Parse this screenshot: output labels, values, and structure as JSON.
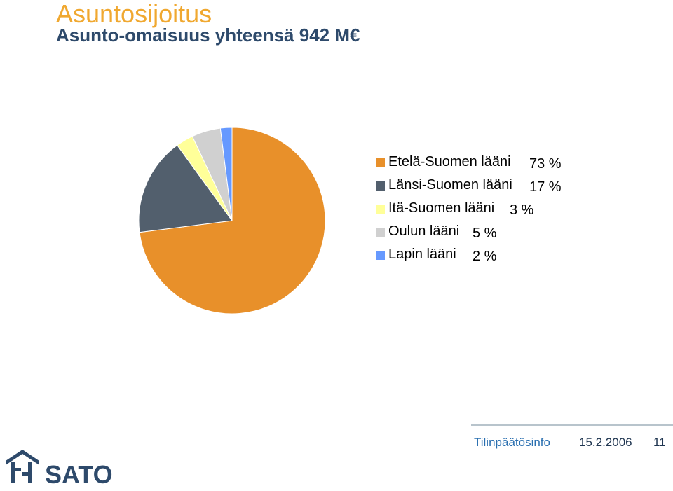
{
  "slide": {
    "title": "Asuntosijoitus",
    "subtitle": "Asunto-omaisuus yhteensä 942 M€"
  },
  "chart_data": {
    "type": "pie",
    "title": "",
    "slices": [
      {
        "label": "Etelä-Suomen lääni",
        "value": 73,
        "pct_label": "73 %",
        "color": "#e8902a"
      },
      {
        "label": "Länsi-Suomen lääni",
        "value": 17,
        "pct_label": "17 %",
        "color": "#525f6d"
      },
      {
        "label": "Itä-Suomen lääni",
        "value": 3,
        "pct_label": "3 %",
        "color": "#ffff99"
      },
      {
        "label": "Oulun lääni",
        "value": 5,
        "pct_label": "5 %",
        "color": "#d0d0d0"
      },
      {
        "label": "Lapin lääni",
        "value": 2,
        "pct_label": "2 %",
        "color": "#6699ff"
      }
    ],
    "legend_position": "right"
  },
  "footer": {
    "title": "Tilinpäätösinfo",
    "date": "15.2.2006",
    "page": "11"
  },
  "logo": {
    "text": "SATO",
    "color": "#2e4a6b"
  }
}
